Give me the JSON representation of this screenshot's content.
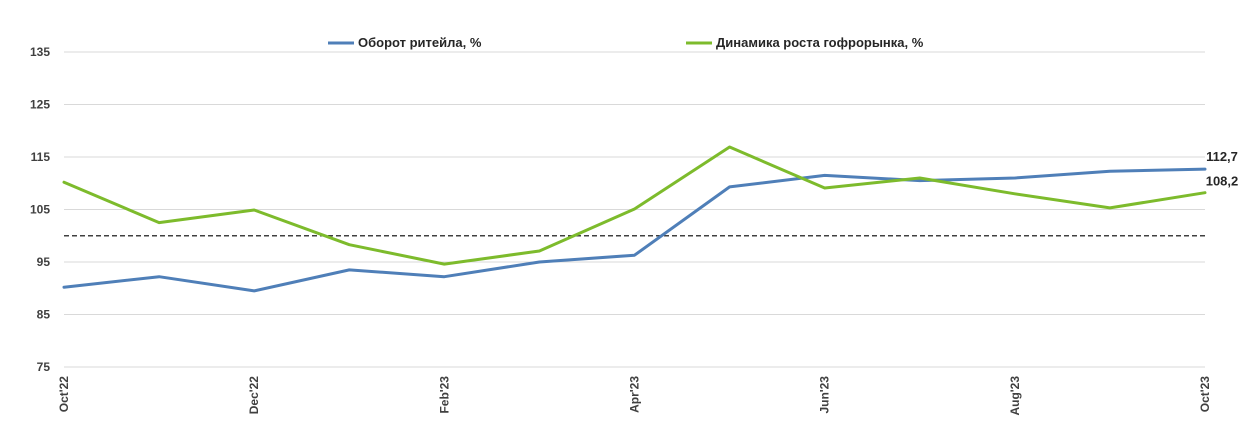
{
  "chart_data": {
    "type": "line",
    "x": [
      "Oct'22",
      "Nov'22",
      "Dec'22",
      "Jan'23",
      "Feb'23",
      "Mar'23",
      "Apr'23",
      "May'23",
      "Jun'23",
      "Jul'23",
      "Aug'23",
      "Sep'23",
      "Oct'23"
    ],
    "x_tick_labels": [
      "Oct'22",
      "Dec'22",
      "Feb'23",
      "Apr'23",
      "Jun'23",
      "Aug'23",
      "Oct'23"
    ],
    "y_ticks": [
      75,
      85,
      95,
      105,
      115,
      125,
      135
    ],
    "ylim": [
      75,
      135
    ],
    "grid": true,
    "legend_position": "top",
    "reference_line": {
      "value": 100,
      "style": "dashed"
    },
    "series": [
      {
        "name": "Оборот ритейла, %",
        "color": "#4F7FB8",
        "values": [
          90.2,
          92.2,
          89.5,
          93.5,
          92.2,
          95.0,
          96.3,
          109.3,
          111.5,
          110.5,
          111.0,
          112.3,
          112.7
        ],
        "end_label": "112,7"
      },
      {
        "name": "Динамика роста гофрорынка, %",
        "color": "#7DBB2C",
        "values": [
          110.2,
          102.5,
          104.9,
          98.3,
          94.6,
          97.1,
          105.1,
          116.9,
          109.1,
          111.0,
          108.0,
          105.3,
          108.2
        ],
        "end_label": "108,2"
      }
    ]
  }
}
